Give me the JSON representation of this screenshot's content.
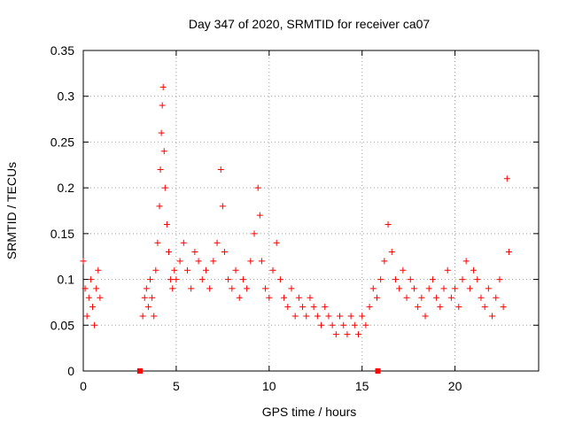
{
  "chart_data": {
    "type": "scatter",
    "title": "Day 347 of 2020, SRMTID for receiver ca07",
    "xlabel": "GPS time / hours",
    "ylabel": "SRMTID / TECUs",
    "xlim": [
      0,
      24.5
    ],
    "ylim": [
      0,
      0.35
    ],
    "x_ticks": [
      {
        "value": 0,
        "label": "0"
      },
      {
        "value": 5,
        "label": "5"
      },
      {
        "value": 10,
        "label": "10"
      },
      {
        "value": 15,
        "label": "15"
      },
      {
        "value": 20,
        "label": "20"
      }
    ],
    "y_ticks": [
      {
        "value": 0,
        "label": "0"
      },
      {
        "value": 0.05,
        "label": "0.05"
      },
      {
        "value": 0.1,
        "label": "0.1"
      },
      {
        "value": 0.15,
        "label": "0.15"
      },
      {
        "value": 0.2,
        "label": "0.2"
      },
      {
        "value": 0.25,
        "label": "0.25"
      },
      {
        "value": 0.3,
        "label": "0.3"
      },
      {
        "value": 0.35,
        "label": "0.35"
      }
    ],
    "grid": true,
    "marker": "+",
    "color": "#ff0000",
    "series": [
      {
        "name": "SRMTID",
        "x": [
          0.0,
          0.1,
          0.2,
          0.3,
          0.4,
          0.5,
          0.6,
          0.7,
          0.8,
          0.9,
          3.2,
          3.3,
          3.4,
          3.5,
          3.6,
          3.7,
          3.8,
          3.9,
          4.0,
          4.1,
          4.15,
          4.2,
          4.25,
          4.3,
          4.35,
          4.4,
          4.5,
          4.6,
          4.7,
          4.8,
          4.9,
          5.0,
          5.2,
          5.4,
          5.6,
          5.8,
          6.0,
          6.2,
          6.4,
          6.6,
          6.8,
          7.0,
          7.2,
          7.4,
          7.5,
          7.6,
          7.8,
          8.0,
          8.2,
          8.4,
          8.6,
          8.8,
          9.0,
          9.2,
          9.4,
          9.5,
          9.6,
          9.8,
          10.0,
          10.2,
          10.4,
          10.6,
          10.8,
          11.0,
          11.2,
          11.4,
          11.6,
          11.8,
          12.0,
          12.2,
          12.4,
          12.6,
          12.8,
          13.0,
          13.2,
          13.4,
          13.6,
          13.8,
          14.0,
          14.2,
          14.4,
          14.6,
          14.8,
          15.0,
          15.2,
          15.4,
          15.6,
          15.8,
          16.0,
          16.2,
          16.4,
          16.6,
          16.8,
          17.0,
          17.2,
          17.4,
          17.6,
          17.8,
          18.0,
          18.2,
          18.4,
          18.6,
          18.8,
          19.0,
          19.2,
          19.4,
          19.6,
          19.8,
          20.0,
          20.2,
          20.4,
          20.6,
          20.8,
          21.0,
          21.2,
          21.4,
          21.6,
          21.8,
          22.0,
          22.2,
          22.4,
          22.6,
          22.8,
          22.9
        ],
        "y": [
          0.12,
          0.09,
          0.06,
          0.08,
          0.1,
          0.07,
          0.05,
          0.09,
          0.11,
          0.08,
          0.06,
          0.08,
          0.09,
          0.07,
          0.1,
          0.08,
          0.06,
          0.11,
          0.14,
          0.18,
          0.22,
          0.26,
          0.29,
          0.31,
          0.24,
          0.2,
          0.16,
          0.13,
          0.1,
          0.09,
          0.11,
          0.1,
          0.12,
          0.14,
          0.11,
          0.09,
          0.13,
          0.12,
          0.1,
          0.11,
          0.09,
          0.12,
          0.14,
          0.22,
          0.18,
          0.13,
          0.1,
          0.09,
          0.11,
          0.08,
          0.1,
          0.09,
          0.12,
          0.15,
          0.2,
          0.17,
          0.12,
          0.09,
          0.08,
          0.11,
          0.14,
          0.1,
          0.08,
          0.07,
          0.09,
          0.06,
          0.08,
          0.07,
          0.06,
          0.08,
          0.07,
          0.06,
          0.05,
          0.07,
          0.06,
          0.05,
          0.04,
          0.06,
          0.05,
          0.04,
          0.06,
          0.05,
          0.04,
          0.06,
          0.05,
          0.07,
          0.09,
          0.08,
          0.1,
          0.12,
          0.16,
          0.13,
          0.1,
          0.09,
          0.11,
          0.08,
          0.1,
          0.09,
          0.07,
          0.08,
          0.06,
          0.09,
          0.1,
          0.08,
          0.07,
          0.09,
          0.11,
          0.08,
          0.09,
          0.07,
          0.1,
          0.12,
          0.09,
          0.11,
          0.1,
          0.08,
          0.07,
          0.09,
          0.06,
          0.08,
          0.1,
          0.07,
          0.21,
          0.13
        ]
      }
    ],
    "markers": [
      {
        "x": 3.05,
        "y": 0,
        "shape": "square"
      },
      {
        "x": 15.85,
        "y": 0,
        "shape": "square"
      }
    ]
  }
}
